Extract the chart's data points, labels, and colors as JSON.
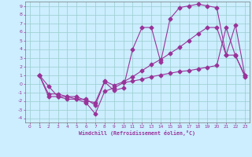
{
  "xlabel": "Windchill (Refroidissement éolien,°C)",
  "bg_color": "#cceeff",
  "grid_color": "#99cccc",
  "line_color": "#993399",
  "xlim": [
    -0.5,
    23.5
  ],
  "ylim": [
    -4.5,
    9.5
  ],
  "xticks": [
    0,
    1,
    2,
    3,
    4,
    5,
    6,
    7,
    8,
    9,
    10,
    11,
    12,
    13,
    14,
    15,
    16,
    17,
    18,
    19,
    20,
    21,
    22,
    23
  ],
  "yticks": [
    -4,
    -3,
    -2,
    -1,
    0,
    1,
    2,
    3,
    4,
    5,
    6,
    7,
    8,
    9
  ],
  "line1_x": [
    1,
    2,
    3,
    4,
    5,
    6,
    7,
    8,
    9,
    10,
    11,
    12,
    13,
    14,
    15,
    16,
    17,
    18,
    19,
    20,
    21,
    22,
    23
  ],
  "line1_y": [
    1.0,
    -0.3,
    -1.5,
    -1.5,
    -1.8,
    -1.8,
    -2.5,
    0.2,
    -0.8,
    -0.5,
    4.0,
    6.5,
    6.5,
    2.5,
    7.5,
    8.8,
    9.0,
    9.2,
    9.0,
    8.8,
    3.3,
    3.3,
    0.8
  ],
  "line2_x": [
    1,
    2,
    3,
    4,
    5,
    6,
    7,
    8,
    9,
    10,
    11,
    12,
    13,
    14,
    15,
    16,
    17,
    18,
    19,
    20,
    21,
    22,
    23
  ],
  "line2_y": [
    1.0,
    -1.5,
    -1.5,
    -1.8,
    -1.8,
    -2.2,
    -3.5,
    -0.9,
    -0.5,
    0.1,
    0.3,
    0.5,
    0.8,
    1.0,
    1.2,
    1.4,
    1.5,
    1.7,
    1.9,
    2.1,
    6.5,
    3.2,
    1.0
  ],
  "line3_x": [
    1,
    2,
    3,
    4,
    5,
    6,
    7,
    8,
    9,
    10,
    11,
    12,
    13,
    14,
    15,
    16,
    17,
    18,
    19,
    20,
    21,
    22,
    23
  ],
  "line3_y": [
    1.0,
    -1.2,
    -1.2,
    -1.5,
    -1.5,
    -2.0,
    -2.2,
    0.3,
    -0.2,
    0.2,
    0.8,
    1.5,
    2.2,
    2.8,
    3.5,
    4.2,
    5.0,
    5.8,
    6.5,
    6.5,
    3.3,
    6.8,
    1.0
  ]
}
